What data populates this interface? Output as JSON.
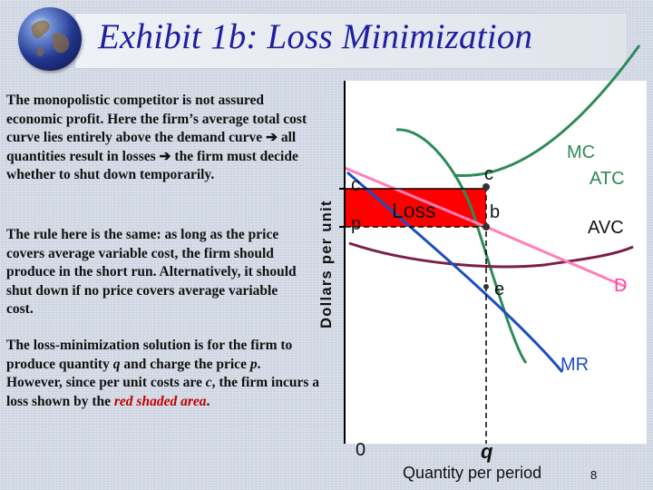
{
  "slide": {
    "title": "Exhibit 1b: Loss Minimization",
    "page_number": "8",
    "colors": {
      "title": "#1f1fa0",
      "loss_area": "#ff0000",
      "mc": "#2e8b57",
      "atc": "#2e8b57",
      "avc": "#7a1f4a",
      "demand": "#ff7eb8",
      "mr": "#1c4fbf"
    }
  },
  "paragraphs": {
    "p1_a": "The monopolistic competitor is not assured economic profit.  Here the firm’s average total cost curve lies entirely above the demand curve ",
    "p1_b": " all quantities result in losses ",
    "p1_c": " the firm must decide whether to shut down temporarily.",
    "p2": "The rule here is the same:  as long as the price covers average variable cost, the firm should  produce in the short run.  Alternatively, it should shut down if no price covers average variable cost.",
    "p3_a": "The loss-minimization solution is for the firm to produce quantity ",
    "p3_q": "q",
    "p3_b": " and charge the price ",
    "p3_p": "p",
    "p3_c": ".  However, since per unit costs are ",
    "p3_cc": "c",
    "p3_d": ", the firm incurs a loss shown by the ",
    "p3_red": "red shaded area",
    "p3_e": "."
  },
  "chart_data": {
    "type": "line",
    "ylabel": "Dollars per unit",
    "xlabel": "Quantity per period",
    "origin_label": "0",
    "area_label": "Loss",
    "curve_labels": {
      "mc": "MC",
      "atc": "ATC",
      "avc": "AVC",
      "demand": "D",
      "mr": "MR"
    },
    "point_labels": {
      "c": "c",
      "b": "b",
      "e": "e"
    },
    "axis_tick_labels": {
      "c": "c",
      "p": "p",
      "q": "q"
    }
  }
}
